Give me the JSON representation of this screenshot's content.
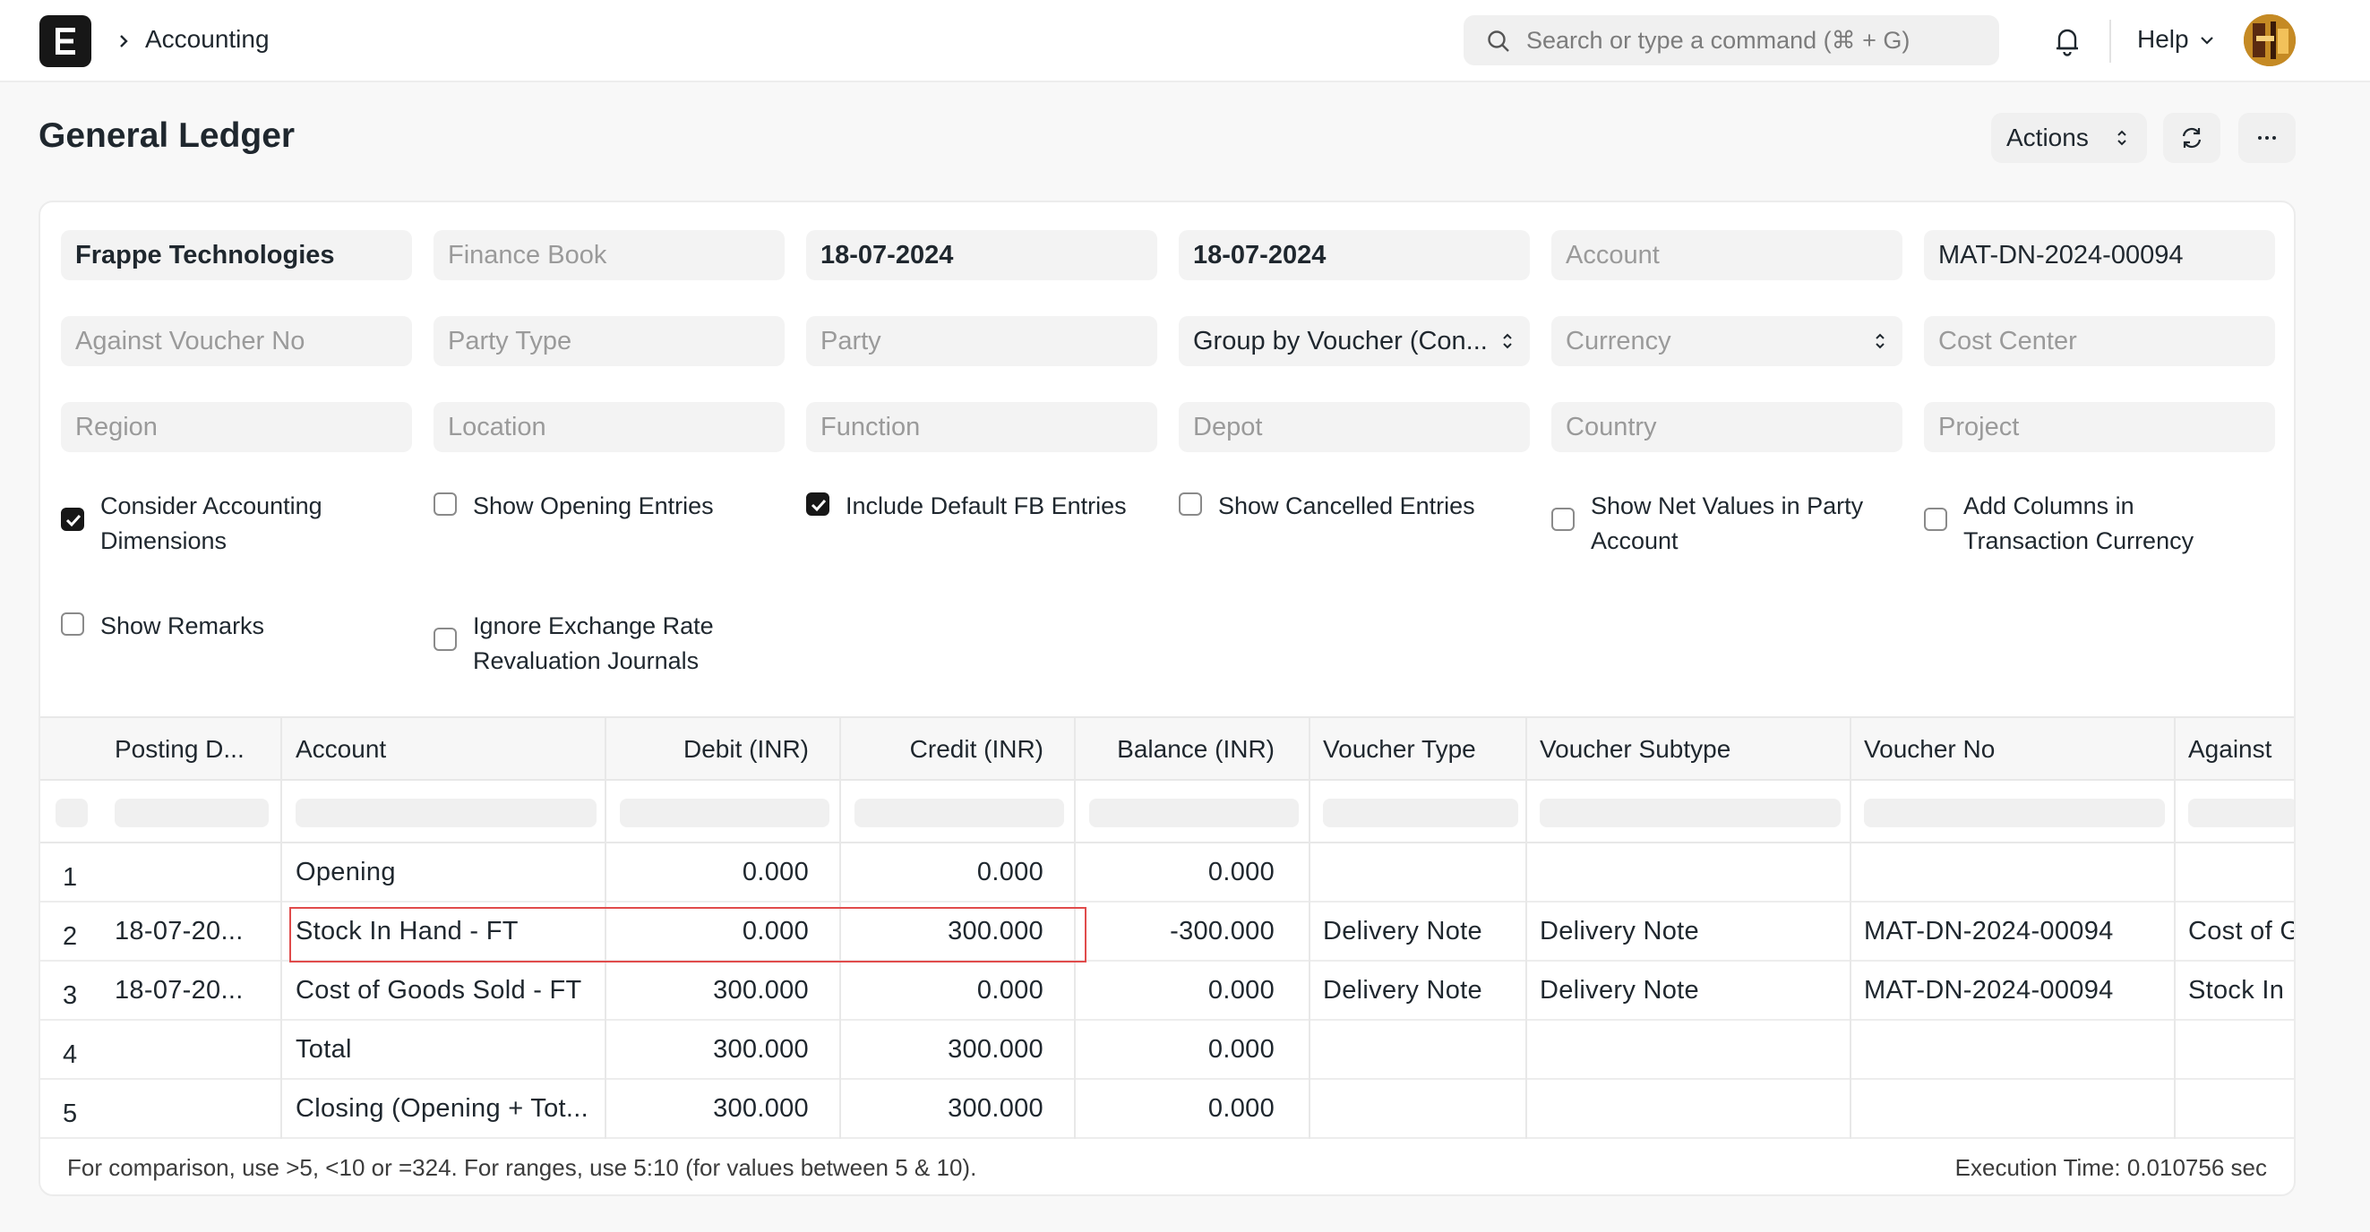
{
  "navbar": {
    "breadcrumb": "Accounting",
    "search_placeholder": "Search or type a command (⌘ + G)",
    "help_label": "Help"
  },
  "page": {
    "title": "General Ledger",
    "actions_label": "Actions"
  },
  "filters": {
    "company": "Frappe Technologies",
    "finance_book": "Finance Book",
    "from_date": "18-07-2024",
    "to_date": "18-07-2024",
    "account": "Account",
    "voucher_no": "MAT-DN-2024-00094",
    "against_voucher_no": "Against Voucher No",
    "party_type": "Party Type",
    "party": "Party",
    "group_by": "Group by Voucher (Con...",
    "currency": "Currency",
    "cost_center": "Cost Center",
    "region": "Region",
    "location": "Location",
    "function": "Function",
    "depot": "Depot",
    "country": "Country",
    "project": "Project"
  },
  "checkboxes": [
    {
      "line1": "Consider Accounting",
      "line2": "Dimensions",
      "checked": true
    },
    {
      "line1": "Show Opening Entries",
      "line2": "",
      "checked": false
    },
    {
      "line1": "Include Default FB Entries",
      "line2": "",
      "checked": true
    },
    {
      "line1": "Show Cancelled Entries",
      "line2": "",
      "checked": false
    },
    {
      "line1": "Show Net Values in Party",
      "line2": "Account",
      "checked": false
    },
    {
      "line1": "Add Columns in",
      "line2": "Transaction Currency",
      "checked": false
    },
    {
      "line1": "Show Remarks",
      "line2": "",
      "checked": false
    },
    {
      "line1": "Ignore Exchange Rate",
      "line2": "Revaluation Journals",
      "checked": false
    }
  ],
  "table": {
    "columns": [
      "Posting D...",
      "Account",
      "Debit (INR)",
      "Credit (INR)",
      "Balance (INR)",
      "Voucher Type",
      "Voucher Subtype",
      "Voucher No",
      "Against"
    ],
    "rows": [
      {
        "idx": "1",
        "posting_date": "",
        "account": "Opening",
        "debit": "0.000",
        "credit": "0.000",
        "balance": "0.000",
        "voucher_type": "",
        "voucher_subtype": "",
        "voucher_no": "",
        "against": ""
      },
      {
        "idx": "2",
        "posting_date": "18-07-20...",
        "account": "Stock In Hand - FT",
        "debit": "0.000",
        "credit": "300.000",
        "balance": "-300.000",
        "voucher_type": "Delivery Note",
        "voucher_subtype": "Delivery Note",
        "voucher_no": "MAT-DN-2024-00094",
        "against": "Cost of G"
      },
      {
        "idx": "3",
        "posting_date": "18-07-20...",
        "account": "Cost of Goods Sold - FT",
        "debit": "300.000",
        "credit": "0.000",
        "balance": "0.000",
        "voucher_type": "Delivery Note",
        "voucher_subtype": "Delivery Note",
        "voucher_no": "MAT-DN-2024-00094",
        "against": "Stock In"
      },
      {
        "idx": "4",
        "posting_date": "",
        "account": "Total",
        "debit": "300.000",
        "credit": "300.000",
        "balance": "0.000",
        "voucher_type": "",
        "voucher_subtype": "",
        "voucher_no": "",
        "against": ""
      },
      {
        "idx": "5",
        "posting_date": "",
        "account": "Closing (Opening + Tot...",
        "debit": "300.000",
        "credit": "300.000",
        "balance": "0.000",
        "voucher_type": "",
        "voucher_subtype": "",
        "voucher_no": "",
        "against": ""
      }
    ]
  },
  "footer": {
    "hint": "For comparison, use >5, <10 or =324. For ranges, use 5:10 (for values between 5 & 10).",
    "execution_time": "Execution Time: 0.010756 sec"
  },
  "colors": {
    "highlight": "#e04b4b",
    "checkbox_on": "#171717"
  }
}
